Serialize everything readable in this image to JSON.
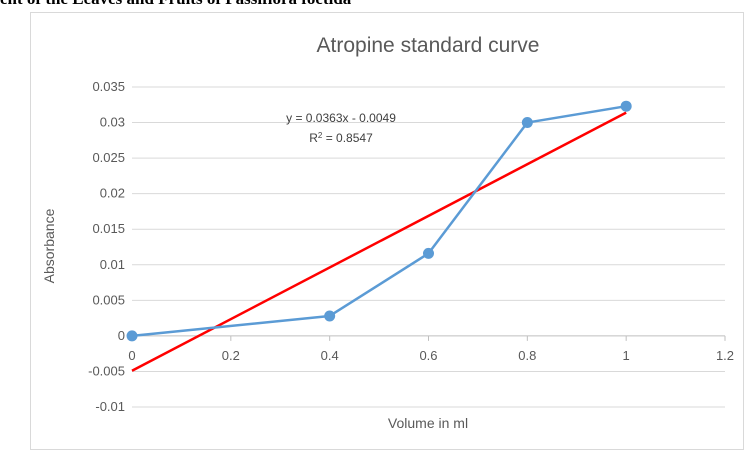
{
  "document": {
    "heading": "ent of the Leaves and Fruits of Passiflora foetida"
  },
  "chart_data": {
    "type": "scatter",
    "title": "Atropine standard curve",
    "xlabel": "Volume in ml",
    "ylabel": "Absorbance",
    "xlim": [
      0,
      1.2
    ],
    "ylim": [
      -0.01,
      0.035
    ],
    "x_ticks": [
      0,
      0.2,
      0.4,
      0.6,
      0.8,
      1,
      1.2
    ],
    "x_tick_labels": [
      "0",
      "0.2",
      "0.4",
      "0.6",
      "0.8",
      "1",
      "1.2"
    ],
    "y_ticks": [
      -0.01,
      -0.005,
      0,
      0.005,
      0.01,
      0.015,
      0.02,
      0.025,
      0.03,
      0.035
    ],
    "y_tick_labels": [
      "-0.01",
      "-0.005",
      "0",
      "0.005",
      "0.01",
      "0.015",
      "0.02",
      "0.025",
      "0.03",
      "0.035"
    ],
    "grid": "horizontal",
    "legend": "none",
    "series": [
      {
        "x": [
          0,
          0.4,
          0.6,
          0.8,
          1.0
        ],
        "y": [
          0,
          0.0028,
          0.0116,
          0.03,
          0.0323
        ],
        "color": "#5b9bd5",
        "style": "line-with-markers"
      }
    ],
    "trendline": {
      "type": "linear",
      "slope": 0.0363,
      "intercept": -0.0049,
      "x_range": [
        0,
        1
      ],
      "color": "#ff0000",
      "equation": "y = 0.0363x - 0.0049",
      "r_squared_prefix": "R",
      "r_squared_sup": "2",
      "r_squared_value": " = 0.8547"
    }
  }
}
